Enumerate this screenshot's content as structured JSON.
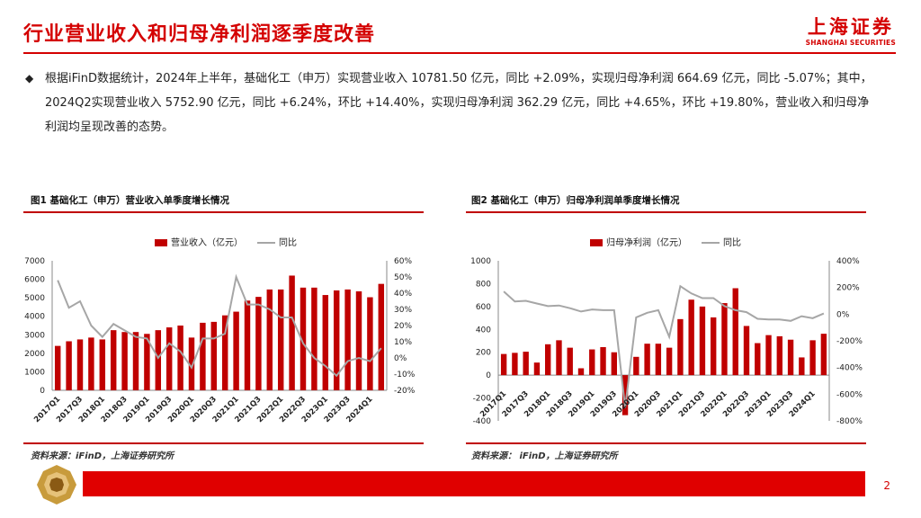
{
  "header": {
    "title": "行业营业收入和归母净利润逐季度改善",
    "logo_cn": "上海证券",
    "logo_en": "SHANGHAI SECURITIES"
  },
  "summary": {
    "bullet": "◆",
    "text": "根据iFinD数据统计，2024年上半年，基础化工（申万）实现营业收入 10781.50 亿元，同比 +2.09%，实现归母净利润 664.69 亿元，同比 -5.07%；其中，2024Q2实现营业收入 5752.90 亿元，同比 +6.24%，环比 +14.40%，实现归母净利润 362.29 亿元，同比 +4.65%，环比 +19.80%，营业收入和归母净利润均呈现改善的态势。"
  },
  "figures": {
    "fig1_title": "图1  基础化工（申万）营业收入单季度增长情况",
    "fig2_title": "图2  基础化工（申万）归母净利润单季度增长情况",
    "fig1_source": "资料来源：iFinD，上海证券研究所",
    "fig2_source": "资料来源：   iFinD，上海证券研究所"
  },
  "footer": {
    "page": "2"
  },
  "colors": {
    "brand": "#d40000",
    "bar": "#c00000",
    "line": "#a6a6a6"
  },
  "chart_data": [
    {
      "type": "bar",
      "title": "基础化工（申万）营业收入单季度增长情况",
      "categories": [
        "2017Q1",
        "2017Q2",
        "2017Q3",
        "2017Q4",
        "2018Q1",
        "2018Q2",
        "2018Q3",
        "2018Q4",
        "2019Q1",
        "2019Q2",
        "2019Q3",
        "2019Q4",
        "2020Q1",
        "2020Q2",
        "2020Q3",
        "2020Q4",
        "2021Q1",
        "2021Q2",
        "2021Q3",
        "2021Q4",
        "2022Q1",
        "2022Q2",
        "2022Q3",
        "2022Q4",
        "2023Q1",
        "2023Q2",
        "2023Q3",
        "2023Q4",
        "2024Q1",
        "2024Q2"
      ],
      "tick_labels": [
        "2017Q1",
        "2017Q3",
        "2018Q1",
        "2018Q3",
        "2019Q1",
        "2019Q3",
        "2020Q1",
        "2020Q3",
        "2021Q1",
        "2021Q3",
        "2022Q1",
        "2022Q3",
        "2023Q1",
        "2023Q3",
        "2024Q1"
      ],
      "series": [
        {
          "name": "营业收入（亿元）",
          "kind": "bar",
          "axis": "left",
          "values": [
            2400,
            2650,
            2750,
            2850,
            2750,
            3250,
            3150,
            3150,
            3050,
            3250,
            3400,
            3500,
            2850,
            3650,
            3700,
            4050,
            4250,
            4850,
            5050,
            5450,
            5450,
            6200,
            5550,
            5550,
            5150,
            5400,
            5450,
            5350,
            5030,
            5753
          ]
        },
        {
          "name": "同比",
          "kind": "line",
          "axis": "right",
          "values": [
            48,
            31,
            35,
            20,
            13,
            21,
            17,
            13,
            12,
            0,
            9,
            4,
            -6,
            12,
            12,
            15,
            50,
            33,
            33,
            30,
            25,
            25,
            9,
            0,
            -5,
            -11,
            -2,
            0,
            -2,
            6
          ]
        }
      ],
      "y_left": {
        "min": 0,
        "max": 7000,
        "ticks": [
          "0",
          "1000",
          "2000",
          "3000",
          "4000",
          "5000",
          "6000",
          "7000"
        ]
      },
      "y_right": {
        "min": -20,
        "max": 60,
        "ticks": [
          "-20%",
          "-10%",
          "0%",
          "10%",
          "20%",
          "30%",
          "40%",
          "50%",
          "60%"
        ]
      },
      "legend_position": "top-center"
    },
    {
      "type": "bar",
      "title": "基础化工（申万）归母净利润单季度增长情况",
      "categories": [
        "2017Q1",
        "2017Q2",
        "2017Q3",
        "2017Q4",
        "2018Q1",
        "2018Q2",
        "2018Q3",
        "2018Q4",
        "2019Q1",
        "2019Q2",
        "2019Q3",
        "2019Q4",
        "2020Q1",
        "2020Q2",
        "2020Q3",
        "2020Q4",
        "2021Q1",
        "2021Q2",
        "2021Q3",
        "2021Q4",
        "2022Q1",
        "2022Q2",
        "2022Q3",
        "2022Q4",
        "2023Q1",
        "2023Q2",
        "2023Q3",
        "2023Q4",
        "2024Q1",
        "2024Q2"
      ],
      "tick_labels": [
        "2017Q1",
        "2017Q3",
        "2018Q1",
        "2018Q3",
        "2019Q1",
        "2019Q3",
        "2020Q1",
        "2020Q3",
        "2021Q1",
        "2021Q3",
        "2022Q1",
        "2022Q3",
        "2023Q1",
        "2023Q3",
        "2024Q1"
      ],
      "series": [
        {
          "name": "归母净利润（亿元）",
          "kind": "bar",
          "axis": "left",
          "values": [
            185,
            195,
            205,
            110,
            270,
            305,
            240,
            60,
            225,
            245,
            200,
            -350,
            160,
            275,
            275,
            240,
            490,
            660,
            600,
            505,
            630,
            760,
            430,
            280,
            350,
            340,
            310,
            155,
            305,
            362
          ]
        },
        {
          "name": "同比",
          "kind": "line",
          "axis": "right",
          "values": [
            170,
            95,
            100,
            80,
            60,
            65,
            45,
            20,
            35,
            30,
            30,
            -700,
            -25,
            10,
            30,
            -170,
            210,
            155,
            120,
            120,
            60,
            30,
            15,
            -35,
            -40,
            -40,
            -50,
            -15,
            -30,
            5
          ]
        }
      ],
      "y_left": {
        "min": -400,
        "max": 1000,
        "ticks": [
          "-400",
          "-200",
          "0",
          "200",
          "400",
          "600",
          "800",
          "1000"
        ]
      },
      "y_right": {
        "min": -800,
        "max": 400,
        "ticks": [
          "-800%",
          "-600%",
          "-400%",
          "-200%",
          "0%",
          "200%",
          "400%"
        ]
      },
      "legend_position": "top-center"
    }
  ]
}
